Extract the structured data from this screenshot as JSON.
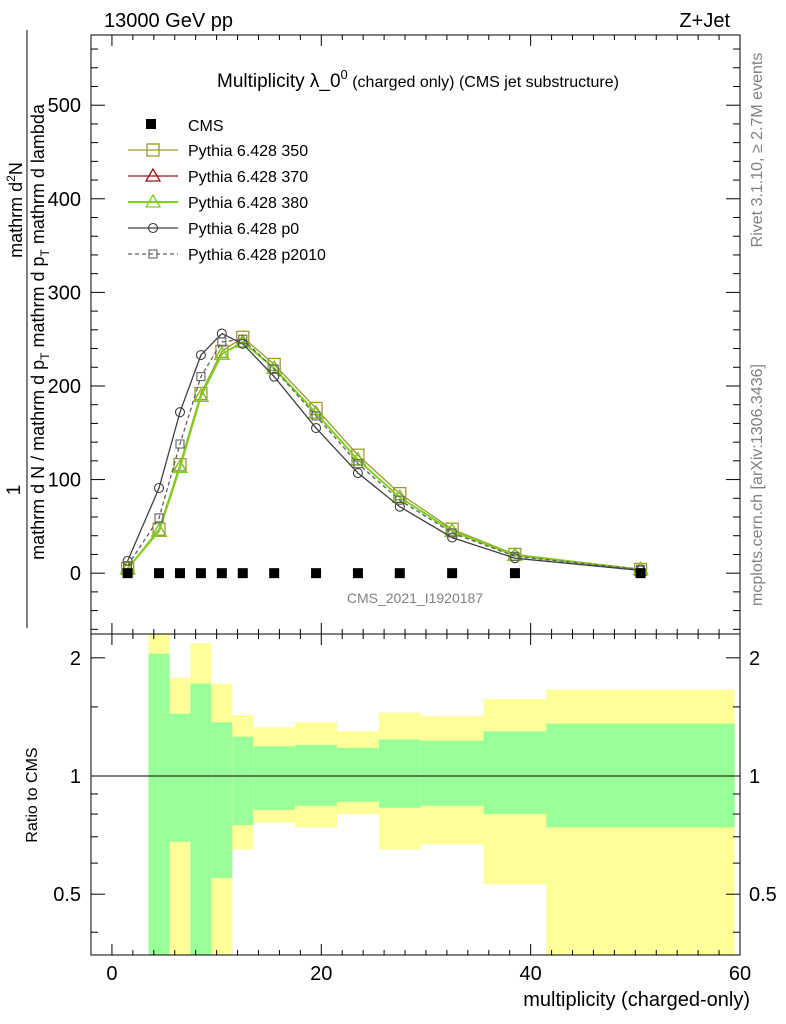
{
  "header": {
    "left": "13000 GeV pp",
    "right": "Z+Jet"
  },
  "side_labels": {
    "rivet": "Rivet 3.1.10, ≥ 2.7M events",
    "mcplots": "mcplots.cern.ch [arXiv:1306.3436]"
  },
  "chart_data": {
    "type": "line",
    "title_main": "Multiplicity λ_0",
    "title_sup": "0",
    "title_rest": " (charged only) (CMS jet substructure)",
    "analysis_id": "CMS_2021_I1920187",
    "ylabel_numerator": "1",
    "ylabel_denominator": "mathrm d N / mathrm d p",
    "ylabel_sub": "T",
    "ylabel_tail": " mathrm d p",
    "ylabel_sub2": "T",
    "ylabel_tail2": " mathrm d lambda",
    "ylabel_top": "mathrm d",
    "ylabel_top_sup": "2",
    "ylabel_top_tail": "N",
    "xlabel": "multiplicity (charged-only)",
    "ratio_ylabel": "Ratio to CMS",
    "xlim": [
      -2,
      60
    ],
    "ylim": [
      -65,
      575
    ],
    "ratio_ylim": [
      0.35,
      2.3
    ],
    "x_ticks": [
      0,
      20,
      40,
      60
    ],
    "y_ticks": [
      0,
      100,
      200,
      300,
      400,
      500
    ],
    "ratio_ticks": [
      0.5,
      1,
      2
    ],
    "legend_position": "top-left",
    "cms": {
      "name": "CMS",
      "x": [
        1.5,
        4.5,
        6.5,
        8.5,
        10.5,
        12.5,
        15.5,
        19.5,
        23.5,
        27.5,
        32.5,
        38.5,
        50.5
      ],
      "y": [
        0,
        0,
        0,
        0,
        0,
        0,
        0,
        0,
        0,
        0,
        0,
        0,
        0
      ]
    },
    "series": [
      {
        "name": "Pythia 6.428 350",
        "color": "#9a9a30",
        "marker": "square-open",
        "dash": "none",
        "x": [
          1.5,
          4.5,
          6.5,
          8.5,
          10.5,
          12.5,
          15.5,
          19.5,
          23.5,
          27.5,
          32.5,
          38.5,
          50.5
        ],
        "y": [
          5,
          47,
          116,
          192,
          237,
          252,
          223,
          176,
          126,
          85,
          47,
          20,
          4
        ]
      },
      {
        "name": "Pythia 6.428 370",
        "color": "#a01010",
        "marker": "triangle-open",
        "dash": "none",
        "x": [
          1.5,
          4.5,
          6.5,
          8.5,
          10.5,
          12.5,
          15.5,
          19.5,
          23.5,
          27.5,
          32.5,
          38.5,
          50.5
        ],
        "y": [
          5,
          45,
          113,
          189,
          234,
          247,
          219,
          171,
          121,
          81,
          45,
          19,
          4
        ]
      },
      {
        "name": "Pythia 6.428 380",
        "color": "#80d020",
        "marker": "triangle-open",
        "dash": "none",
        "x": [
          1.5,
          4.5,
          6.5,
          8.5,
          10.5,
          12.5,
          15.5,
          19.5,
          23.5,
          27.5,
          32.5,
          38.5,
          50.5
        ],
        "y": [
          5,
          45,
          113,
          189,
          234,
          247,
          219,
          171,
          121,
          81,
          45,
          19,
          4
        ]
      },
      {
        "name": "Pythia 6.428 p0",
        "color": "#404040",
        "marker": "circle-open",
        "dash": "none",
        "x": [
          1.5,
          4.5,
          6.5,
          8.5,
          10.5,
          12.5,
          15.5,
          19.5,
          23.5,
          27.5,
          32.5,
          38.5,
          50.5
        ],
        "y": [
          13,
          91,
          172,
          233,
          256,
          245,
          210,
          155,
          107,
          71,
          38,
          16,
          3
        ]
      },
      {
        "name": "Pythia 6.428 p2010",
        "color": "#606060",
        "marker": "square-small",
        "dash": "4,3",
        "x": [
          1.5,
          4.5,
          6.5,
          8.5,
          10.5,
          12.5,
          15.5,
          19.5,
          23.5,
          27.5,
          32.5,
          38.5,
          50.5
        ],
        "y": [
          8,
          59,
          138,
          210,
          247,
          250,
          218,
          168,
          117,
          78,
          43,
          18,
          4
        ]
      }
    ],
    "ratio_bands": [
      {
        "x0": 3.5,
        "x1": 5.5,
        "g_lo": 0.35,
        "g_hi": 2.05,
        "y_lo": 0.35,
        "y_hi": 2.3
      },
      {
        "x0": 5.5,
        "x1": 7.5,
        "g_lo": 0.68,
        "g_hi": 1.44,
        "y_lo": 0.35,
        "y_hi": 1.78
      },
      {
        "x0": 7.5,
        "x1": 9.5,
        "g_lo": 0.35,
        "g_hi": 1.72,
        "y_lo": 0.35,
        "y_hi": 2.18
      },
      {
        "x0": 9.5,
        "x1": 11.5,
        "g_lo": 0.55,
        "g_hi": 1.37,
        "y_lo": 0.35,
        "y_hi": 1.72
      },
      {
        "x0": 11.5,
        "x1": 13.5,
        "g_lo": 0.75,
        "g_hi": 1.26,
        "y_lo": 0.65,
        "y_hi": 1.43
      },
      {
        "x0": 13.5,
        "x1": 17.5,
        "g_lo": 0.82,
        "g_hi": 1.19,
        "y_lo": 0.76,
        "y_hi": 1.33
      },
      {
        "x0": 17.5,
        "x1": 21.5,
        "g_lo": 0.84,
        "g_hi": 1.2,
        "y_lo": 0.74,
        "y_hi": 1.37
      },
      {
        "x0": 21.5,
        "x1": 25.5,
        "g_lo": 0.86,
        "g_hi": 1.18,
        "y_lo": 0.8,
        "y_hi": 1.3
      },
      {
        "x0": 25.5,
        "x1": 29.5,
        "g_lo": 0.83,
        "g_hi": 1.24,
        "y_lo": 0.65,
        "y_hi": 1.45
      },
      {
        "x0": 29.5,
        "x1": 35.5,
        "g_lo": 0.84,
        "g_hi": 1.23,
        "y_lo": 0.67,
        "y_hi": 1.42
      },
      {
        "x0": 35.5,
        "x1": 41.5,
        "g_lo": 0.8,
        "g_hi": 1.3,
        "y_lo": 0.53,
        "y_hi": 1.57
      },
      {
        "x0": 41.5,
        "x1": 59.5,
        "g_lo": 0.74,
        "g_hi": 1.36,
        "y_lo": 0.35,
        "y_hi": 1.66
      }
    ]
  }
}
